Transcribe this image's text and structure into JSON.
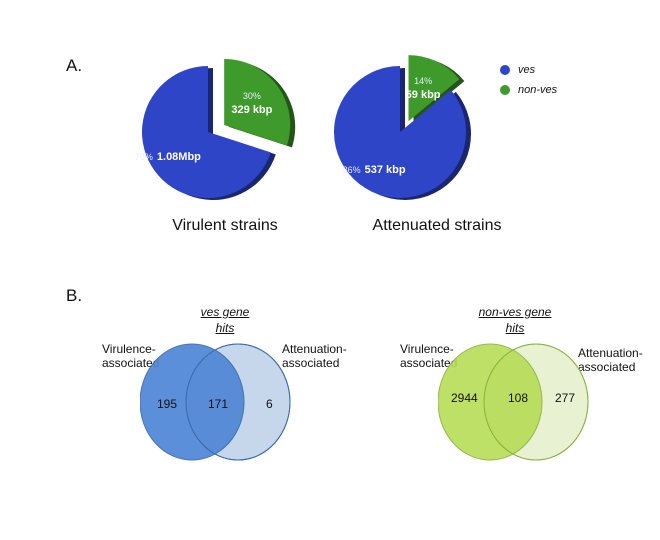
{
  "panel_a_label": "A.",
  "panel_b_label": "B.",
  "colors": {
    "ves": "#2f45c8",
    "non_ves": "#3f9a2c",
    "venn_blue": "#4f86d6",
    "venn_blue_light": "#c4d4ea",
    "venn_green": "#b7dd56",
    "venn_green_light": "#e7f1cf"
  },
  "chart_data": [
    {
      "type": "pie",
      "title": "Virulent strains",
      "slices": [
        {
          "name": "ves",
          "percent": 70,
          "percent_label": "70%",
          "value_label": "1.08Mbp"
        },
        {
          "name": "non-ves",
          "percent": 30,
          "percent_label": "30%",
          "value_label": "329 kbp",
          "exploded": true
        }
      ],
      "legend": [
        "ves",
        "non-ves"
      ],
      "legend_position": "right"
    },
    {
      "type": "pie",
      "title": "Attenuated strains",
      "slices": [
        {
          "name": "ves",
          "percent": 86,
          "percent_label": "86%",
          "value_label": "537 kbp"
        },
        {
          "name": "non-ves",
          "percent": 14,
          "percent_label": "14%",
          "value_label": "59 kbp",
          "exploded": true
        }
      ]
    },
    {
      "type": "venn",
      "title": [
        "ves gene",
        "hits"
      ],
      "sets": [
        "Virulence-associated",
        "Attenuation-associated"
      ],
      "left_label": [
        "Virulence-",
        "associated"
      ],
      "right_label": [
        "Attenuation-",
        "associated"
      ],
      "left_only": 195,
      "both": 171,
      "right_only": 6
    },
    {
      "type": "venn",
      "title": [
        "non-ves gene",
        "hits"
      ],
      "sets": [
        "Virulence-associated",
        "Attenuation-associated"
      ],
      "left_label": [
        "Virulence-",
        "associated"
      ],
      "right_label": [
        "Attenuation-",
        "associated"
      ],
      "left_only": 2944,
      "both": 108,
      "right_only": 277
    }
  ]
}
